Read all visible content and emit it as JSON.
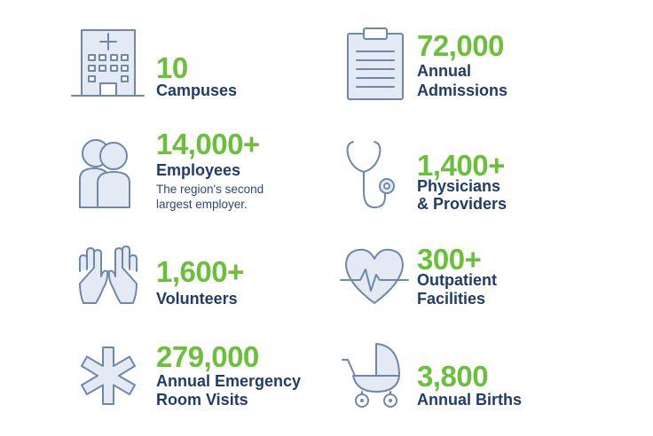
{
  "stats": [
    {
      "number": "10",
      "label_lines": [
        "Campuses"
      ],
      "icon": "hospital-icon"
    },
    {
      "number": "72,000",
      "label_lines": [
        "Annual",
        "Admissions"
      ],
      "icon": "clipboard-icon"
    },
    {
      "number": "14,000+",
      "label_lines": [
        "Employees"
      ],
      "sub_lines": [
        "The region's second",
        "largest employer."
      ],
      "icon": "people-icon"
    },
    {
      "number": "1,400+",
      "label_lines": [
        "Physicians",
        "& Providers"
      ],
      "icon": "stethoscope-icon"
    },
    {
      "number": "1,600+",
      "label_lines": [
        "Volunteers"
      ],
      "icon": "raised-hands-icon"
    },
    {
      "number": "300+",
      "label_lines": [
        "Outpatient",
        "Facilities"
      ],
      "icon": "heart-pulse-icon"
    },
    {
      "number": "279,000",
      "label_lines": [
        "Annual Emergency",
        "Room Visits"
      ],
      "icon": "star-of-life-icon"
    },
    {
      "number": "3,800",
      "label_lines": [
        "Annual Births"
      ],
      "icon": "baby-carriage-icon"
    }
  ],
  "colors": {
    "number": "#6cbf3a",
    "label": "#1f3d6b",
    "icon_stroke": "#6e88ad",
    "icon_fill": "#e3eaf4"
  }
}
